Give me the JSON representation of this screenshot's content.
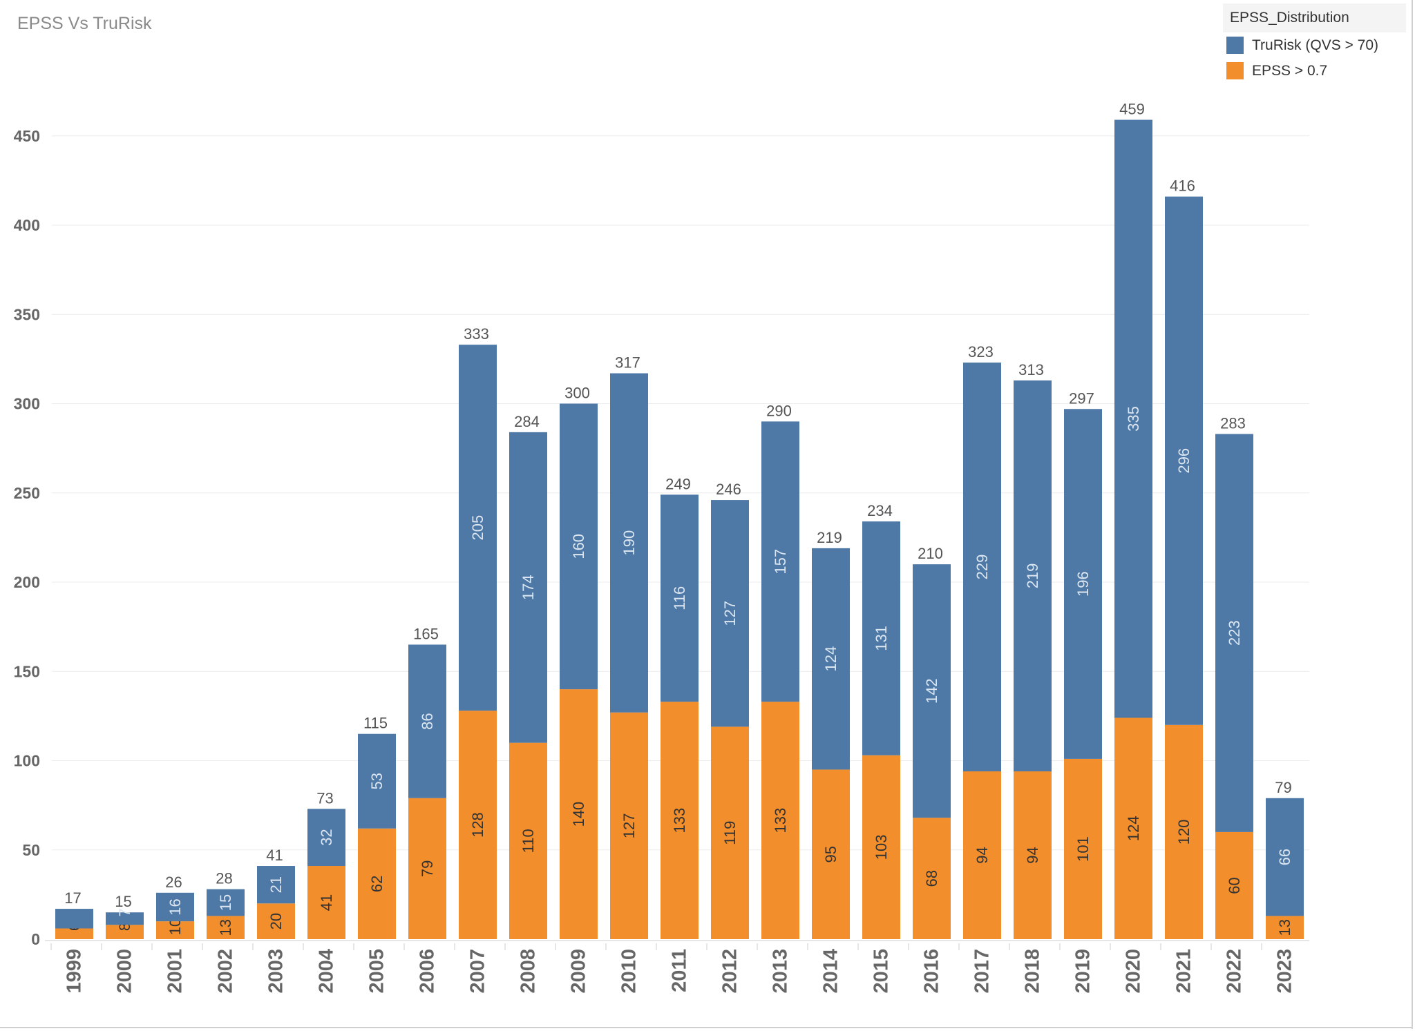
{
  "chart_data": {
    "type": "bar",
    "stacked": true,
    "title": "EPSS Vs TruRisk",
    "xlabel": "",
    "ylabel": "",
    "ylim": [
      0,
      470
    ],
    "yticks": [
      0,
      50,
      100,
      150,
      200,
      250,
      300,
      350,
      400,
      450
    ],
    "grid": true,
    "legend": {
      "title": "EPSS_Distribution",
      "placement": "top-right"
    },
    "categories": [
      "1999",
      "2000",
      "2001",
      "2002",
      "2003",
      "2004",
      "2005",
      "2006",
      "2007",
      "2008",
      "2009",
      "2010",
      "2011",
      "2012",
      "2013",
      "2014",
      "2015",
      "2016",
      "2017",
      "2018",
      "2019",
      "2020",
      "2021",
      "2022",
      "2023"
    ],
    "series": [
      {
        "name": "EPSS > 0.7",
        "color": "#f28e2b",
        "values": [
          6,
          8,
          10,
          13,
          20,
          41,
          62,
          79,
          128,
          110,
          140,
          127,
          133,
          119,
          133,
          95,
          103,
          68,
          94,
          94,
          101,
          124,
          120,
          60,
          13
        ]
      },
      {
        "name": "TruRisk (QVS > 70)",
        "color": "#4e79a7",
        "values": [
          11,
          7,
          16,
          15,
          21,
          32,
          53,
          86,
          205,
          174,
          160,
          190,
          116,
          127,
          157,
          124,
          131,
          142,
          229,
          219,
          196,
          335,
          296,
          223,
          66
        ]
      }
    ],
    "totals": [
      17,
      15,
      26,
      28,
      41,
      73,
      115,
      165,
      333,
      284,
      300,
      317,
      249,
      246,
      290,
      219,
      234,
      210,
      323,
      313,
      297,
      459,
      416,
      283,
      79
    ]
  }
}
